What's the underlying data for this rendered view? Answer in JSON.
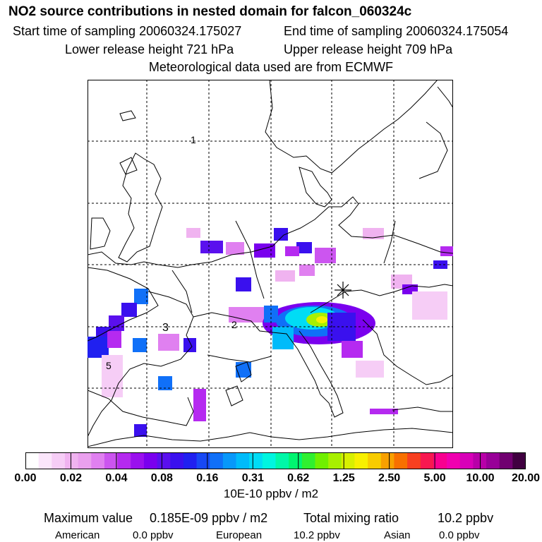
{
  "header": {
    "title": "NO2 source contributions in nested domain for falcon_060324c",
    "start_time": "Start time of sampling 20060324.175027",
    "end_time": "End time of sampling 20060324.175054",
    "lower_height": "Lower release height  721 hPa",
    "upper_height": "Upper release height  709 hPa",
    "met_data": "Meteorological data used are from ECMWF"
  },
  "map": {
    "markers": [
      "1",
      "2",
      "3",
      "5"
    ],
    "flight_marker_icon": "star-cross-icon"
  },
  "colorbar": {
    "ticks": [
      "0.00",
      "0.02",
      "0.04",
      "0.08",
      "0.16",
      "0.31",
      "0.62",
      "1.25",
      "2.50",
      "5.00",
      "10.00",
      "20.00"
    ],
    "unit": "10E-10 ppbv / m2",
    "colors": [
      "#ffffff",
      "#fbe6fb",
      "#f6cdf6",
      "#f0b3f0",
      "#eaa0ee",
      "#e080f0",
      "#cc55f0",
      "#b52af0",
      "#9a10ee",
      "#7a00ee",
      "#5a10ee",
      "#3a10ee",
      "#2020f0",
      "#1848f5",
      "#1070f8",
      "#0898fa",
      "#00bbfa",
      "#00dcf5",
      "#00f5e0",
      "#00f8a8",
      "#00f570",
      "#30f030",
      "#70f000",
      "#a8f000",
      "#d8f000",
      "#f8f000",
      "#f8cc00",
      "#f8a000",
      "#f87000",
      "#f84020",
      "#f81850",
      "#f80090",
      "#f000b0",
      "#d800b8",
      "#b800a8",
      "#980098",
      "#700070",
      "#400040"
    ]
  },
  "stats": {
    "max_label": "Maximum value",
    "max_value": "0.185E-09 ppbv / m2",
    "total_label": "Total mixing ratio",
    "total_value": "10.2 ppbv",
    "american_label": "American",
    "american_value": "0.0 ppbv",
    "european_label": "European",
    "european_value": "10.2 ppbv",
    "asian_label": "Asian",
    "asian_value": "0.0 ppbv"
  }
}
